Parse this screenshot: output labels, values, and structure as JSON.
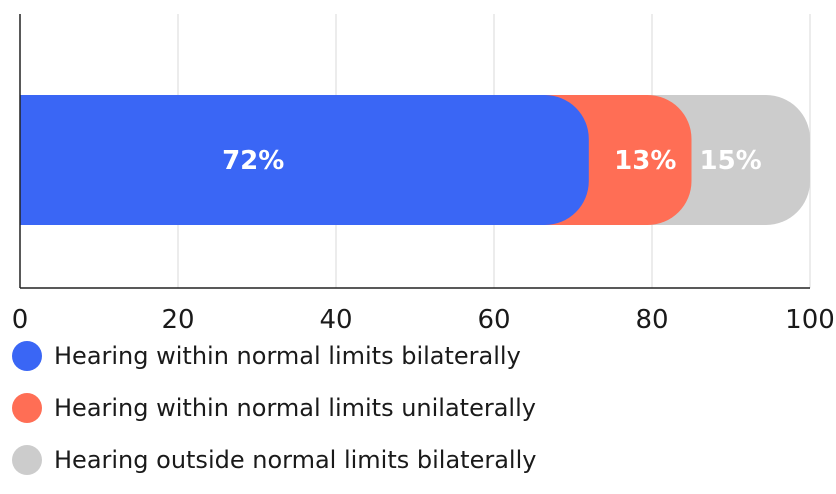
{
  "chart_data": {
    "type": "bar",
    "orientation": "horizontal",
    "stacked": true,
    "categories": [
      ""
    ],
    "series": [
      {
        "name": "Hearing within normal limits bilaterally",
        "values": [
          72
        ],
        "label": "72%",
        "color": "#3a66f5"
      },
      {
        "name": "Hearing within normal limits unilaterally",
        "values": [
          13
        ],
        "label": "13%",
        "color": "#ff6e55"
      },
      {
        "name": "Hearing outside normal limits bilaterally",
        "values": [
          15
        ],
        "label": "15%",
        "color": "#cccccc"
      }
    ],
    "xlim": [
      0,
      100
    ],
    "xticks": [
      "0",
      "20",
      "40",
      "60",
      "80",
      "100"
    ],
    "grid": "vertical",
    "legend": "bottom-left"
  }
}
